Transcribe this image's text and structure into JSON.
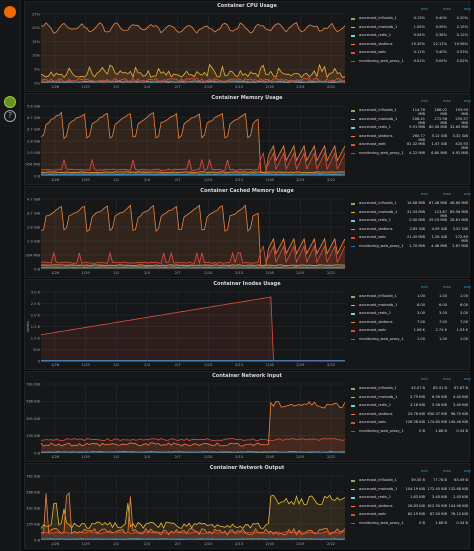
{
  "colors": {
    "bg": "#0b0c0e",
    "panel_bg": "#161719",
    "grid": "#2b2e33",
    "axis_text": "#9fa7b3",
    "legend_header": "#33a2e5",
    "series": [
      "#7eb26d",
      "#eab839",
      "#6ed0e0",
      "#ef843c",
      "#e24d42",
      "#1f78c1",
      "#ba43a9"
    ]
  },
  "sidebar": {
    "logo_icon": "grafana-logo-icon",
    "avatar_icon": "user-avatar-icon",
    "help_icon": "help-icon"
  },
  "legend_headers": {
    "min": "min",
    "max": "max",
    "avg": "avg"
  },
  "x_ticks": [
    "1/26",
    "1/29",
    "2/1",
    "2/4",
    "2/7",
    "2/10",
    "2/13",
    "2/16",
    "2/19",
    "2/22"
  ],
  "panels": [
    {
      "id": "cpu",
      "title": "Container CPU Usage",
      "y_ticks": [
        "25%",
        "20%",
        "15%",
        "10%",
        "5%",
        "0%"
      ],
      "y_unit_label": "",
      "legend": [
        {
          "name": "azurecast_influxdb_1",
          "min": "0.13%",
          "max": "0.40%",
          "avg": "0.20%",
          "color": "#7eb26d"
        },
        {
          "name": "azurecast_mariadb_1",
          "min": "1.05%",
          "max": "4.99%",
          "avg": "2.15%",
          "color": "#eab839"
        },
        {
          "name": "azurecast_redis_1",
          "min": "0.04%",
          "max": "0.38%",
          "avg": "0.12%",
          "color": "#6ed0e0"
        },
        {
          "name": "azurecast_stations",
          "min": "19.30%",
          "max": "22.11%",
          "avg": "19.56%",
          "color": "#ef843c"
        },
        {
          "name": "azurecast_web",
          "min": "0.11%",
          "max": "3.40%",
          "avg": "0.53%",
          "color": "#e24d42"
        },
        {
          "name": "monitoring_web_proxy_1",
          "min": "0.01%",
          "max": "0.05%",
          "avg": "0.02%",
          "color": "#1f78c1"
        }
      ]
    },
    {
      "id": "memory",
      "title": "Container Memory Usage",
      "y_ticks": [
        "5.6 GiB",
        "4.7 GiB",
        "3.7 GiB",
        "2.8 GiB",
        "1.9 GiB",
        "954 MiB",
        "0 B"
      ],
      "y_unit_label": "",
      "legend": [
        {
          "name": "azurecast_influxdb_1",
          "min": "114.76 MiB",
          "max": "268.02 MiB",
          "avg": "193.99 MiB",
          "color": "#7eb26d"
        },
        {
          "name": "azurecast_mariadb_1",
          "min": "206.41 MiB",
          "max": "272.96 MiB",
          "avg": "255.57 MiB",
          "color": "#eab839"
        },
        {
          "name": "azurecast_redis_1",
          "min": "5.91 MiB",
          "max": "80.56 MiB",
          "avg": "32.65 MiB",
          "color": "#6ed0e0"
        },
        {
          "name": "azurecast_stations",
          "min": "260.77 MiB",
          "max": "5.12 GiB",
          "avg": "3.32 GiB",
          "color": "#ef843c"
        },
        {
          "name": "azurecast_web",
          "min": "81.32 MiB",
          "max": "1.47 GiB",
          "avg": "425.93 MiB",
          "color": "#e24d42"
        },
        {
          "name": "monitoring_web_proxy_1",
          "min": "4.22 MiB",
          "max": "6.80 MiB",
          "avg": "4.92 MiB",
          "color": "#1f78c1"
        }
      ]
    },
    {
      "id": "cached",
      "title": "Container Cached Memory Usage",
      "y_ticks": [
        "4.7 GiB",
        "3.7 GiB",
        "2.8 GiB",
        "1.9 GiB",
        "954 MiB",
        "0 B"
      ],
      "y_unit_label": "",
      "legend": [
        {
          "name": "azurecast_influxdb_1",
          "min": "14.08 MiB",
          "max": "87.46 MiB",
          "avg": "48.60 MiB",
          "color": "#7eb26d"
        },
        {
          "name": "azurecast_mariadb_1",
          "min": "31.54 MiB",
          "max": "113.67 MiB",
          "avg": "89.56 MiB",
          "color": "#eab839"
        },
        {
          "name": "azurecast_redis_1",
          "min": "0.00 MiB",
          "max": "59.19 MiB",
          "avg": "28.61 MiB",
          "color": "#6ed0e0"
        },
        {
          "name": "azurecast_stations",
          "min": "2.85 GiB",
          "max": "4.59 GiB",
          "avg": "3.52 GiB",
          "color": "#ef843c"
        },
        {
          "name": "azurecast_web",
          "min": "21.45 MiB",
          "max": "1.26 GiB",
          "avg": "272.69 MiB",
          "color": "#e24d42"
        },
        {
          "name": "monitoring_web_proxy_1",
          "min": "1.70 MiB",
          "max": "4.48 MiB",
          "avg": "2.67 MiB",
          "color": "#1f78c1"
        }
      ]
    },
    {
      "id": "inodes",
      "title": "Container Inodes Usage",
      "y_ticks": [
        "3.0 K",
        "2.5 K",
        "2.0 K",
        "1.5 K",
        "1.0 K",
        "500",
        "0"
      ],
      "y_unit_label": "inodes",
      "legend": [
        {
          "name": "azurecast_influxdb_1",
          "min": "1.00",
          "max": "1.00",
          "avg": "1.00",
          "color": "#7eb26d"
        },
        {
          "name": "azurecast_mariadb_1",
          "min": "6.00",
          "max": "6.00",
          "avg": "6.00",
          "color": "#eab839"
        },
        {
          "name": "azurecast_redis_1",
          "min": "3.00",
          "max": "3.00",
          "avg": "3.00",
          "color": "#6ed0e0"
        },
        {
          "name": "azurecast_stations",
          "min": "7.00",
          "max": "7.00",
          "avg": "7.00",
          "color": "#ef843c"
        },
        {
          "name": "azurecast_web",
          "min": "1.06 K",
          "max": "2.74 K",
          "avg": "1.93 K",
          "color": "#e24d42"
        },
        {
          "name": "monitoring_web_proxy_1",
          "min": "1.00",
          "max": "1.00",
          "avg": "1.00",
          "color": "#1f78c1"
        }
      ]
    },
    {
      "id": "net_in",
      "title": "Container Network Input",
      "y_ticks": [
        "781 KiB",
        "586 KiB",
        "391 KiB",
        "195 KiB",
        "0 B"
      ],
      "y_unit_label": "",
      "legend": [
        {
          "name": "azurecast_influxdb_1",
          "min": "43.07 B",
          "max": "83.31 B",
          "avg": "67.87 B",
          "color": "#7eb26d"
        },
        {
          "name": "azurecast_mariadb_1",
          "min": "3.79 KiB",
          "max": "6.56 KiB",
          "avg": "4.40 KiB",
          "color": "#eab839"
        },
        {
          "name": "azurecast_redis_1",
          "min": "3.16 KiB",
          "max": "5.56 KiB",
          "avg": "3.49 KiB",
          "color": "#6ed0e0"
        },
        {
          "name": "azurecast_stations",
          "min": "24.76 KiB",
          "max": "630.37 KiB",
          "avg": "96.75 KiB",
          "color": "#ef843c"
        },
        {
          "name": "azurecast_web",
          "min": "126.58 KiB",
          "max": "174.85 KiB",
          "avg": "140.46 KiB",
          "color": "#e24d42"
        },
        {
          "name": "monitoring_web_proxy_1",
          "min": "0 B",
          "max": "1.68 B",
          "avg": "0.34 B",
          "color": "#1f78c1"
        }
      ]
    },
    {
      "id": "net_out",
      "title": "Container Network Output",
      "y_ticks": [
        "781 KiB",
        "586 KiB",
        "391 KiB",
        "195 KiB",
        "0 B"
      ],
      "y_unit_label": "",
      "legend": [
        {
          "name": "azurecast_influxdb_1",
          "min": "39.35 B",
          "max": "77.78 B",
          "avg": "63.49 B",
          "color": "#7eb26d"
        },
        {
          "name": "azurecast_mariadb_1",
          "min": "104.19 KiB",
          "max": "172.45 KiB",
          "avg": "132.68 KiB",
          "color": "#eab839"
        },
        {
          "name": "azurecast_redis_1",
          "min": "1.83 KiB",
          "max": "3.40 KiB",
          "avg": "2.43 KiB",
          "color": "#6ed0e0"
        },
        {
          "name": "azurecast_stations",
          "min": "26.83 KiB",
          "max": "612.90 KiB",
          "avg": "104.06 KiB",
          "color": "#ef843c"
        },
        {
          "name": "azurecast_web",
          "min": "62.19 KiB",
          "max": "87.50 KiB",
          "avg": "76.12 KiB",
          "color": "#e24d42"
        },
        {
          "name": "monitoring_web_proxy_1",
          "min": "0 B",
          "max": "1.68 B",
          "avg": "0.34 B",
          "color": "#1f78c1"
        }
      ]
    }
  ]
}
